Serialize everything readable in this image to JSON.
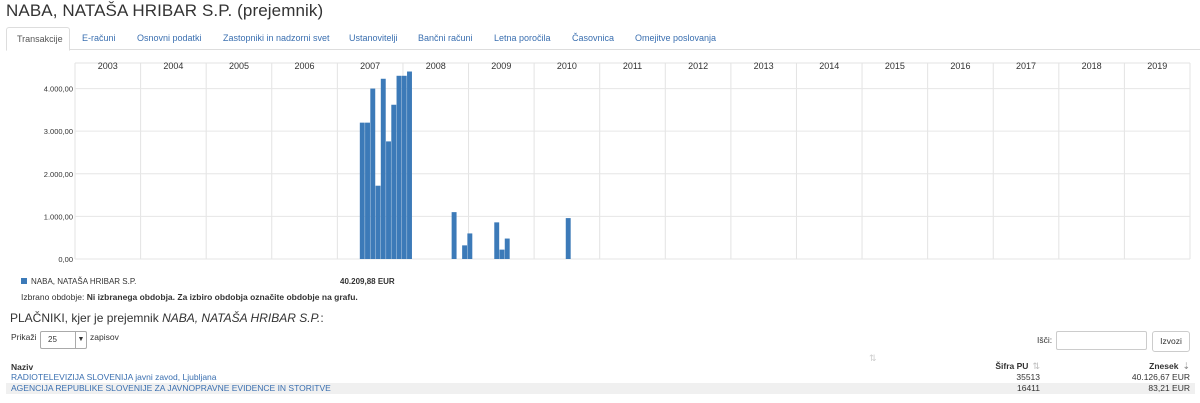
{
  "page_title": "NABA, NATAŠA HRIBAR S.P. (prejemnik)",
  "tabs": [
    {
      "label": "Transakcije",
      "active": true
    },
    {
      "label": "E-računi"
    },
    {
      "label": "Osnovni podatki"
    },
    {
      "label": "Zastopniki in nadzorni svet"
    },
    {
      "label": "Ustanovitelji"
    },
    {
      "label": "Bančni računi"
    },
    {
      "label": "Letna poročila"
    },
    {
      "label": "Časovnica"
    },
    {
      "label": "Omejitve poslovanja"
    }
  ],
  "chart_data": {
    "type": "bar",
    "years": [
      "2003",
      "2004",
      "2005",
      "2006",
      "2007",
      "2008",
      "2009",
      "2010",
      "2011",
      "2012",
      "2013",
      "2014",
      "2015",
      "2016",
      "2017",
      "2018",
      "2019"
    ],
    "y_ticks": [
      "0,00",
      "1.000,00",
      "2.000,00",
      "3.000,00",
      "4.000,00"
    ],
    "ylim": [
      0,
      4600
    ],
    "series": [
      {
        "name": "NABA, NATAŠA HRIBAR S.P.",
        "points": [
          {
            "t": 2007.38,
            "v": 3200
          },
          {
            "t": 2007.46,
            "v": 3200
          },
          {
            "t": 2007.54,
            "v": 4000
          },
          {
            "t": 2007.62,
            "v": 1720
          },
          {
            "t": 2007.7,
            "v": 4230
          },
          {
            "t": 2007.78,
            "v": 2760
          },
          {
            "t": 2007.86,
            "v": 3620
          },
          {
            "t": 2007.94,
            "v": 4300
          },
          {
            "t": 2008.02,
            "v": 4300
          },
          {
            "t": 2008.1,
            "v": 4400
          },
          {
            "t": 2008.78,
            "v": 1100
          },
          {
            "t": 2008.94,
            "v": 320
          },
          {
            "t": 2009.02,
            "v": 600
          },
          {
            "t": 2009.43,
            "v": 860
          },
          {
            "t": 2009.51,
            "v": 220
          },
          {
            "t": 2009.59,
            "v": 480
          },
          {
            "t": 2010.52,
            "v": 960
          }
        ]
      }
    ],
    "color": "#3c7ab8"
  },
  "legend": {
    "name": "NABA, NATAŠA HRIBAR S.P.",
    "total": "40.209,88 EUR"
  },
  "period": {
    "label": "Izbrano obdobje:",
    "value": "Ni izbranega obdobja. Za izbiro obdobja označite obdobje na grafu."
  },
  "payers": {
    "title_prefix": "PLAČNIKI, kjer je prejemnik",
    "title_name": "NABA, NATAŠA HRIBAR S.P.",
    "title_suffix": ":",
    "show_label": "Prikaži",
    "page_size": "25",
    "show_suffix": "zapisov",
    "search_label": "Išči:",
    "search_button": "Izvozi",
    "columns": [
      "Naziv",
      "Šifra PU",
      "Znesek"
    ],
    "rows": [
      {
        "name": "RADIOTELEVIZIJA SLOVENIJA javni zavod, Ljubljana",
        "code": "35513",
        "amount": "40.126,67 EUR"
      },
      {
        "name": "AGENCIJA REPUBLIKE SLOVENIJE ZA JAVNOPRAVNE EVIDENCE IN STORITVE",
        "code": "16411",
        "amount": "83,21 EUR"
      }
    ]
  }
}
